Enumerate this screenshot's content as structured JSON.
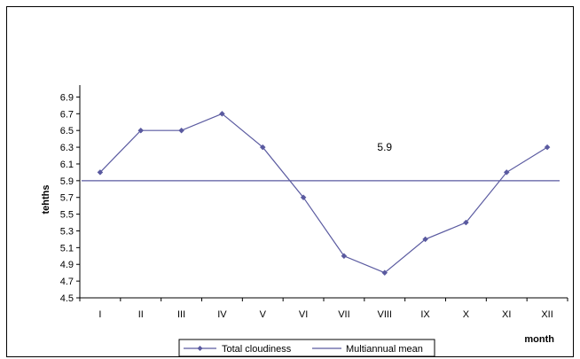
{
  "chart_data": {
    "type": "line",
    "title": "",
    "xlabel": "month",
    "ylabel": "tehths",
    "categories": [
      "I",
      "II",
      "III",
      "IV",
      "V",
      "VI",
      "VII",
      "VIII",
      "IX",
      "X",
      "XI",
      "XII"
    ],
    "series": [
      {
        "name": "Total cloudiness",
        "values": [
          6.0,
          6.5,
          6.5,
          6.7,
          6.3,
          5.7,
          5.0,
          4.8,
          5.2,
          5.4,
          6.0,
          6.3
        ],
        "color": "#5a5aa0",
        "marker": "diamond"
      },
      {
        "name": "Multiannual mean",
        "values": [
          5.9,
          5.9,
          5.9,
          5.9,
          5.9,
          5.9,
          5.9,
          5.9,
          5.9,
          5.9,
          5.9,
          5.9
        ],
        "color": "#5a5aa0",
        "marker": "none"
      }
    ],
    "annotations": [
      {
        "text": "5.9",
        "x": "VIII",
        "y": 6.3
      }
    ],
    "ylim": [
      4.5,
      7.0
    ],
    "yticks": [
      "4.5",
      "4.7",
      "4.9",
      "5.1",
      "5.3",
      "5.5",
      "5.7",
      "5.9",
      "6.1",
      "6.3",
      "6.5",
      "6.7",
      "6.9"
    ],
    "grid": false,
    "legend_position": "bottom-center"
  }
}
